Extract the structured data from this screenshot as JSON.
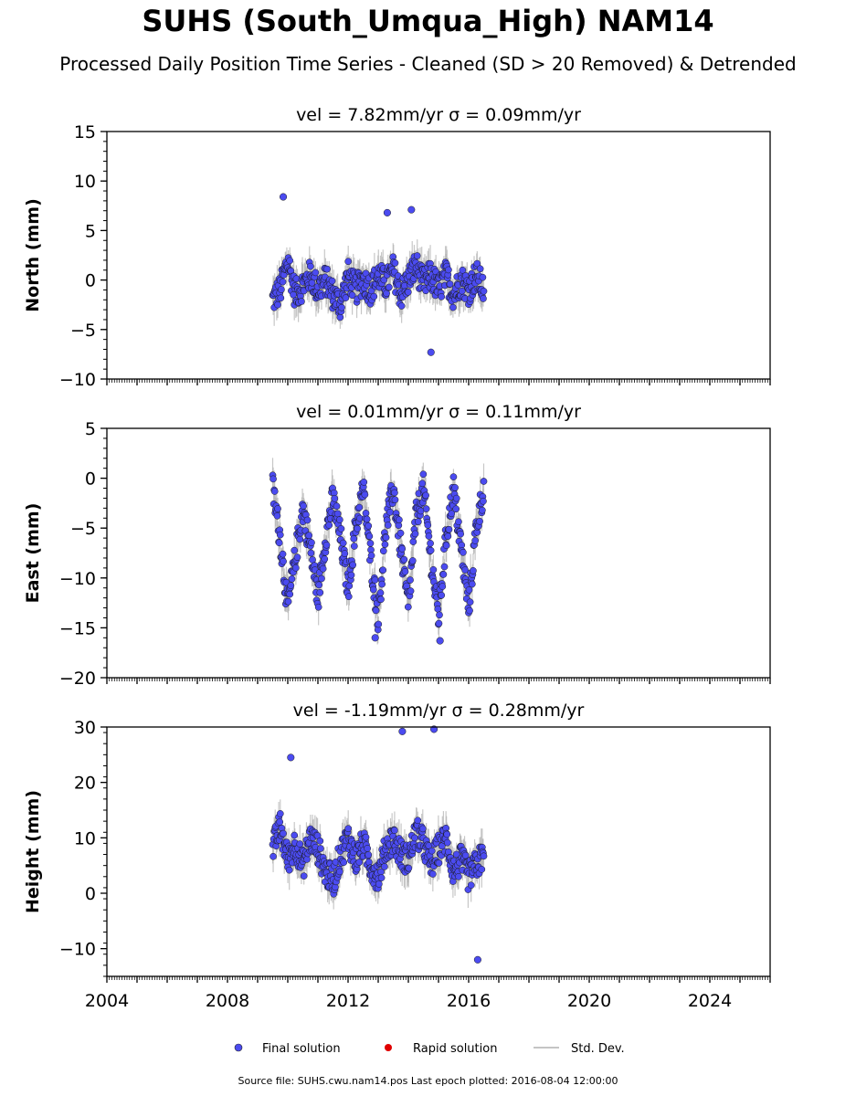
{
  "figure": {
    "title": "SUHS (South_Umqua_High) NAM14",
    "subtitle": "Processed Daily Position Time Series - Cleaned (SD > 20 Removed) & Detrended",
    "source": "Source file: SUHS.cwu.nam14.pos  Last epoch plotted: 2016-08-04 12:00:00"
  },
  "colors": {
    "final": "#4b4bf0",
    "rapid": "#e00000",
    "std": "#b0b0b0"
  },
  "legend": {
    "final": "Final solution",
    "rapid": "Rapid solution",
    "std": "Std. Dev.",
    "placement": "bottom-center"
  },
  "chart_data": [
    {
      "type": "scatter",
      "title": "vel = 7.82mm/yr   σ = 0.09mm/yr",
      "ylabel": "North (mm)",
      "xlim": [
        2004,
        2026
      ],
      "ylim": [
        -10,
        15
      ],
      "xticks": [
        "2004",
        "2008",
        "2012",
        "2016",
        "2020",
        "2024"
      ],
      "yticks": [
        "−10",
        "−5",
        "0",
        "5",
        "10",
        "15"
      ],
      "series": [
        {
          "name": "Final solution",
          "x": [
            2009.5,
            2009.75,
            2010.0,
            2010.25,
            2010.5,
            2010.75,
            2011.0,
            2011.25,
            2011.5,
            2011.75,
            2012.0,
            2012.25,
            2012.5,
            2012.75,
            2013.0,
            2013.25,
            2013.5,
            2013.75,
            2014.0,
            2014.25,
            2014.5,
            2014.75,
            2015.0,
            2015.25,
            2015.5,
            2015.75,
            2016.0,
            2016.25,
            2016.5
          ],
          "y": [
            -2.0,
            -1.0,
            2.0,
            -1.5,
            -0.5,
            0.5,
            -1.0,
            0.0,
            -1.5,
            -2.5,
            0.5,
            -1.0,
            0.0,
            -1.0,
            0.5,
            -0.5,
            1.0,
            -1.5,
            0.0,
            1.5,
            -0.5,
            0.5,
            -1.0,
            0.5,
            -1.5,
            0.0,
            -1.0,
            0.5,
            -1.0
          ],
          "outliers": [
            [
              2009.85,
              8.4
            ],
            [
              2013.3,
              6.8
            ],
            [
              2014.1,
              7.1
            ],
            [
              2014.75,
              -7.3
            ]
          ]
        }
      ]
    },
    {
      "type": "scatter",
      "title": "vel = 0.01mm/yr   σ = 0.11mm/yr",
      "ylabel": "East (mm)",
      "xlim": [
        2004,
        2026
      ],
      "ylim": [
        -20,
        5
      ],
      "xticks": [
        "2004",
        "2008",
        "2012",
        "2016",
        "2020",
        "2024"
      ],
      "yticks": [
        "−20",
        "−15",
        "−10",
        "−5",
        "0",
        "5"
      ],
      "series": [
        {
          "name": "Final solution",
          "x": [
            2009.5,
            2009.75,
            2010.0,
            2010.25,
            2010.5,
            2010.75,
            2011.0,
            2011.25,
            2011.5,
            2011.75,
            2012.0,
            2012.25,
            2012.5,
            2012.75,
            2013.0,
            2013.25,
            2013.5,
            2013.75,
            2014.0,
            2014.25,
            2014.5,
            2014.75,
            2015.0,
            2015.25,
            2015.5,
            2015.75,
            2016.0,
            2016.25,
            2016.5
          ],
          "y": [
            -1.0,
            -6.0,
            -13.0,
            -8.0,
            -3.0,
            -7.0,
            -12.0,
            -6.0,
            -2.0,
            -6.0,
            -11.0,
            -5.0,
            -1.0,
            -8.0,
            -14.0,
            -5.0,
            -1.0,
            -7.0,
            -13.0,
            -4.0,
            -1.0,
            -8.0,
            -14.0,
            -6.0,
            -1.0,
            -7.0,
            -13.0,
            -5.0,
            -1.0
          ],
          "outliers": [
            [
              2012.9,
              -16.0
            ],
            [
              2015.05,
              -16.3
            ]
          ]
        }
      ]
    },
    {
      "type": "scatter",
      "title": "vel = -1.19mm/yr   σ = 0.28mm/yr",
      "ylabel": "Height (mm)",
      "xlim": [
        2004,
        2026
      ],
      "ylim": [
        -15,
        30
      ],
      "xticks": [
        "2004",
        "2008",
        "2012",
        "2016",
        "2020",
        "2024"
      ],
      "yticks": [
        "−10",
        "0",
        "10",
        "20",
        "30"
      ],
      "series": [
        {
          "name": "Final solution",
          "x": [
            2009.5,
            2009.75,
            2010.0,
            2010.25,
            2010.5,
            2010.75,
            2011.0,
            2011.25,
            2011.5,
            2011.75,
            2012.0,
            2012.25,
            2012.5,
            2012.75,
            2013.0,
            2013.25,
            2013.5,
            2013.75,
            2014.0,
            2014.25,
            2014.5,
            2014.75,
            2015.0,
            2015.25,
            2015.5,
            2015.75,
            2016.0,
            2016.25,
            2016.5
          ],
          "y": [
            8.0,
            12.0,
            6.0,
            9.0,
            5.0,
            10.0,
            8.0,
            4.0,
            2.0,
            7.0,
            10.0,
            6.0,
            9.0,
            5.0,
            3.0,
            8.0,
            10.0,
            7.0,
            6.0,
            11.0,
            9.0,
            5.0,
            8.0,
            10.0,
            4.0,
            6.0,
            3.0,
            5.0,
            7.0
          ],
          "outliers": [
            [
              2013.8,
              29.2
            ],
            [
              2014.85,
              29.6
            ],
            [
              2016.3,
              -12.0
            ],
            [
              2010.1,
              24.5
            ]
          ]
        }
      ]
    }
  ]
}
